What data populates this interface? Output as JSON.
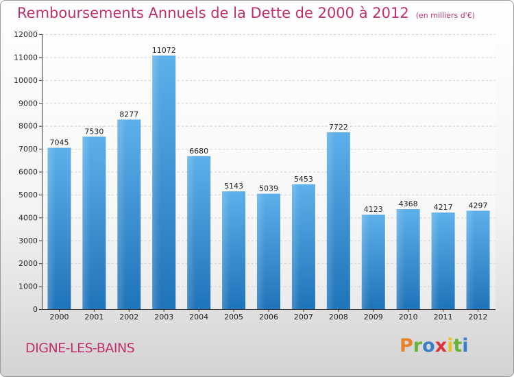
{
  "title": "Remboursements Annuels de la Dette de 2000 à 2012",
  "unit": "(en milliers d'€)",
  "city": "DIGNE-LES-BAINS",
  "logo": {
    "text": "Proxiti",
    "colors": [
      "#e8832a",
      "#66b33a",
      "#3a7dc9",
      "#d8333a",
      "#e8c22a",
      "#66b33a",
      "#3a7dc9"
    ]
  },
  "colors": {
    "title": "#c0306f",
    "bar_light": "#5eb0ea",
    "bar_dark": "#1f73b8"
  },
  "chart_data": {
    "type": "bar",
    "categories": [
      "2000",
      "2001",
      "2002",
      "2003",
      "2004",
      "2005",
      "2006",
      "2007",
      "2008",
      "2009",
      "2010",
      "2011",
      "2012"
    ],
    "values": [
      7045,
      7530,
      8277,
      11072,
      6680,
      5143,
      5039,
      5453,
      7722,
      4123,
      4368,
      4217,
      4297
    ],
    "ylim": [
      0,
      12000
    ],
    "yticks": [
      0,
      1000,
      2000,
      3000,
      4000,
      5000,
      6000,
      7000,
      8000,
      9000,
      10000,
      11000,
      12000
    ],
    "grid": true
  }
}
